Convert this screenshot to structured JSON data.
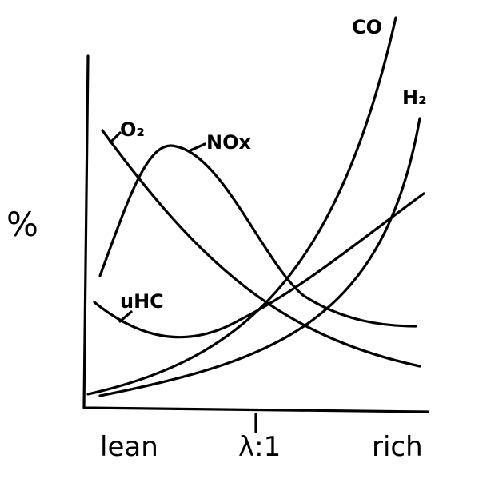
{
  "y_axis_label": "%",
  "x_axis_labels": [
    "lean",
    "λ:1",
    "rich"
  ],
  "curves": [
    {
      "label": "CO"
    },
    {
      "label": "H₂"
    },
    {
      "label": "O₂"
    },
    {
      "label": "NOx"
    },
    {
      "label": "uHC"
    }
  ]
}
